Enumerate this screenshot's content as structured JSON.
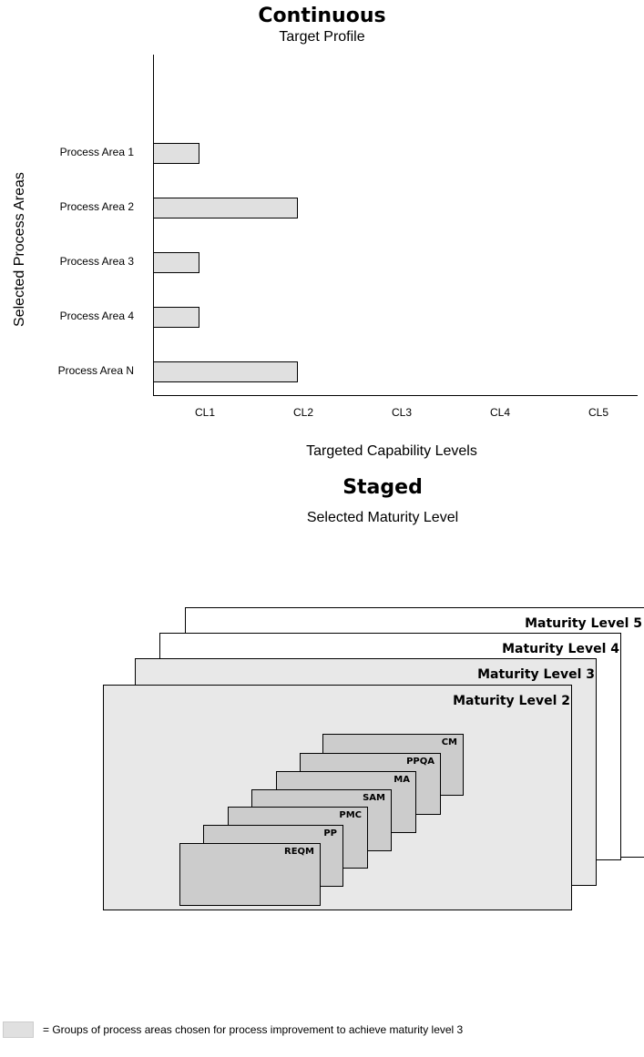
{
  "continuous": {
    "title": "Continuous",
    "subtitle": "Target Profile",
    "y_axis_label": "Selected Process Areas",
    "x_axis_label": "Targeted Capability Levels"
  },
  "chart_data": {
    "type": "bar",
    "orientation": "horizontal",
    "title": "Continuous",
    "subtitle": "Target Profile",
    "xlabel": "Targeted Capability Levels",
    "ylabel": "Selected Process Areas",
    "categories": [
      "Process Area 1",
      "Process Area 2",
      "Process Area 3",
      "Process Area 4",
      "Process Area N"
    ],
    "values": [
      1,
      2,
      1,
      1,
      2
    ],
    "x_ticks": [
      "CL1",
      "CL2",
      "CL3",
      "CL4",
      "CL5"
    ],
    "xlim": [
      0,
      5
    ],
    "bar_color": "#e0e0e0",
    "grid": false
  },
  "staged": {
    "title": "Staged",
    "subtitle": "Selected Maturity Level",
    "maturity_levels": [
      {
        "label": "Maturity Level 5",
        "fill": "#ffffff"
      },
      {
        "label": "Maturity Level 4",
        "fill": "#ffffff"
      },
      {
        "label": "Maturity Level 3",
        "fill": "#e8e8e8"
      },
      {
        "label": "Maturity Level 2",
        "fill": "#e8e8e8"
      }
    ],
    "process_areas": [
      "CM",
      "PPQA",
      "MA",
      "SAM",
      "PMC",
      "PP",
      "REQM"
    ],
    "process_area_fill": "#cccccc"
  },
  "legend": {
    "swatch_color": "#e0e0e0",
    "text": "= Groups of process areas chosen for process improvement to achieve maturity level 3"
  }
}
